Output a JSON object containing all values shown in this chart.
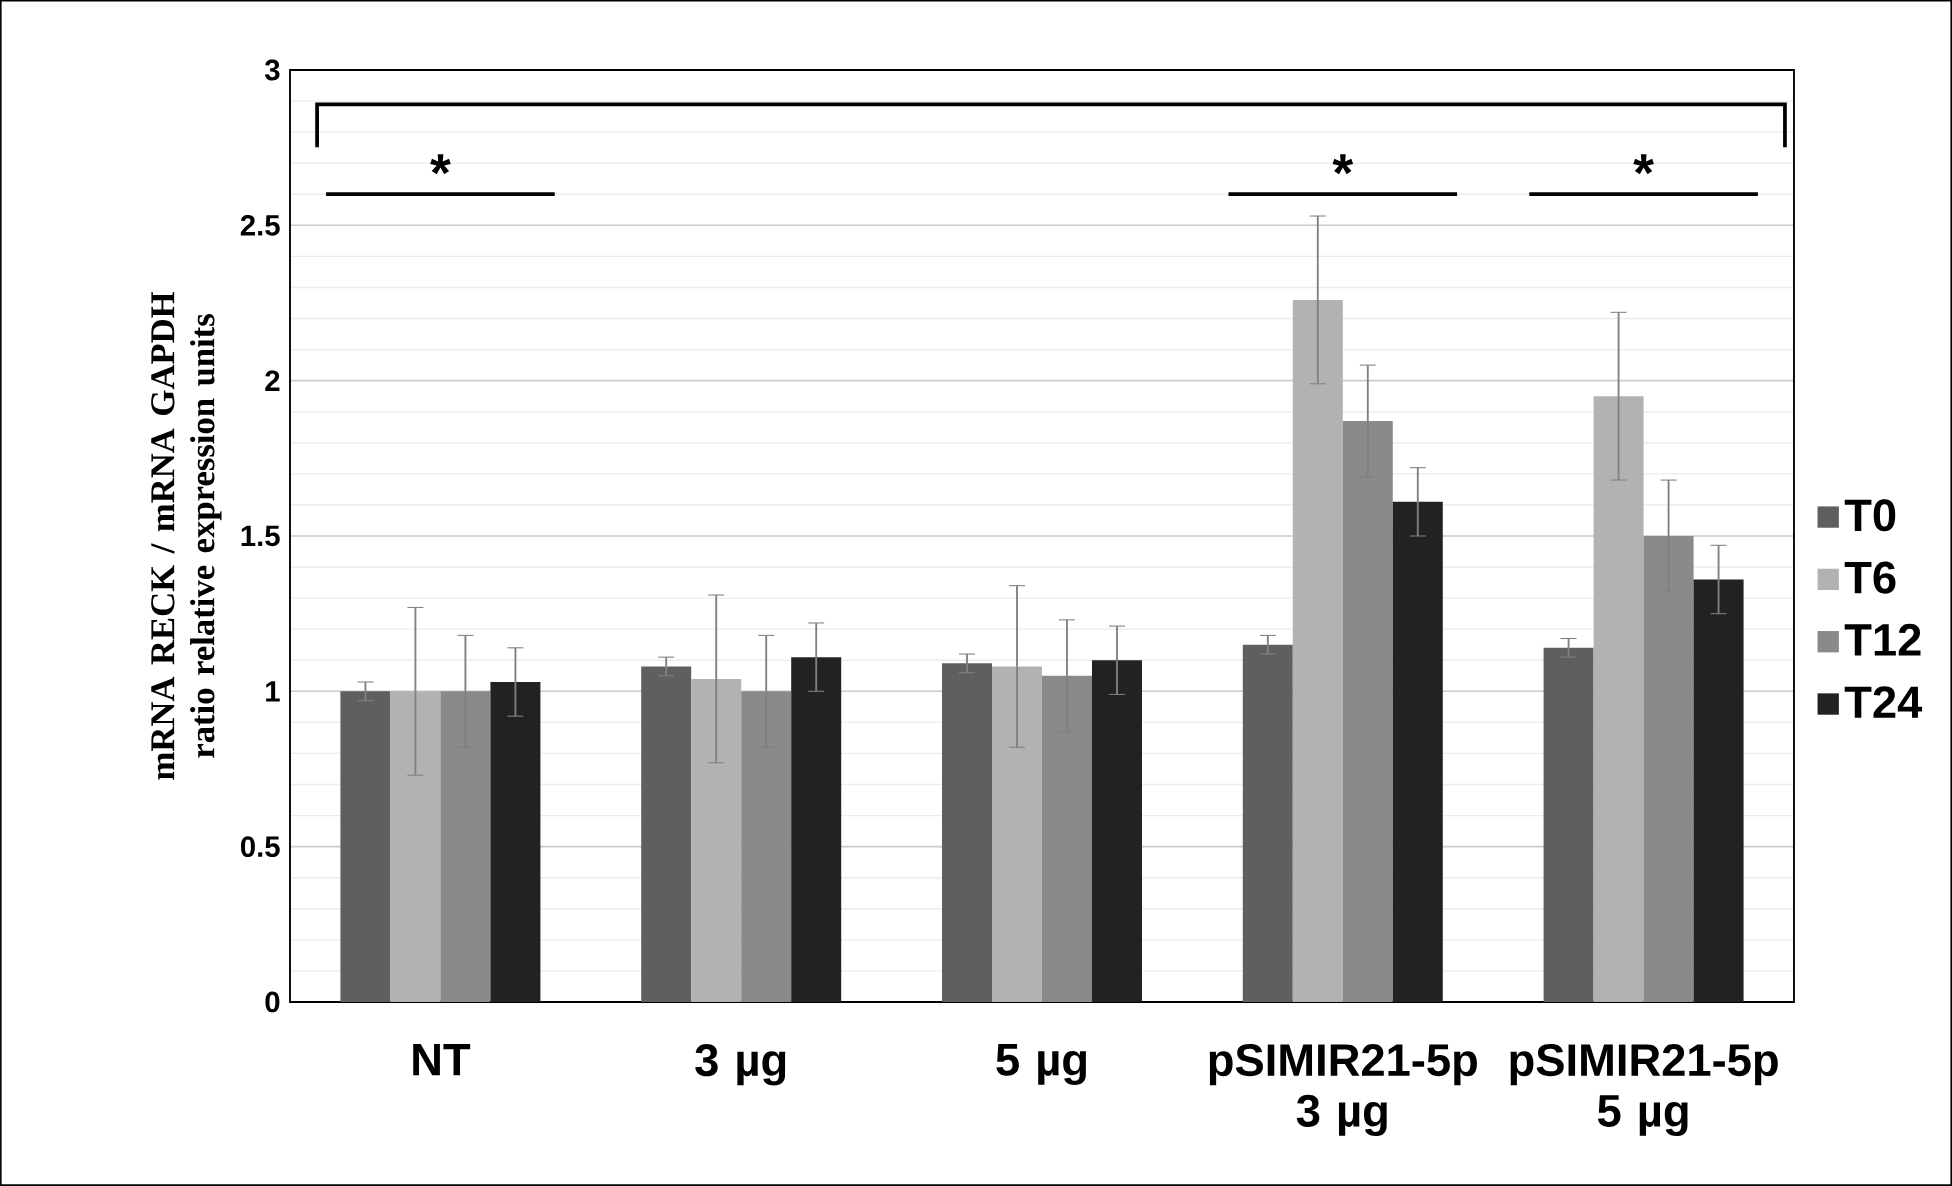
{
  "chart_data": {
    "type": "bar",
    "ylabel": "mRNA RECK / mRNA GAPDH ratio relative expression units",
    "categories": [
      "NT",
      "3 µg",
      "5 µg",
      "pSIMIR21-5p 3 µg",
      "pSIMIR21-5p 5 µg"
    ],
    "series": [
      {
        "name": "T0",
        "color": "#5f5f5f",
        "values": [
          1.0,
          1.08,
          1.09,
          1.15,
          1.14
        ],
        "errors": [
          0.03,
          0.03,
          0.03,
          0.03,
          0.03
        ]
      },
      {
        "name": "T6",
        "color": "#b2b2b2",
        "values": [
          1.0,
          1.04,
          1.08,
          2.26,
          1.95
        ],
        "errors": [
          0.27,
          0.27,
          0.26,
          0.27,
          0.27
        ]
      },
      {
        "name": "T12",
        "color": "#8a8a8a",
        "values": [
          1.0,
          1.0,
          1.05,
          1.87,
          1.5
        ],
        "errors": [
          0.18,
          0.18,
          0.18,
          0.18,
          0.18
        ]
      },
      {
        "name": "T24",
        "color": "#222222",
        "values": [
          1.03,
          1.11,
          1.1,
          1.61,
          1.36
        ],
        "errors": [
          0.11,
          0.11,
          0.11,
          0.11,
          0.11
        ]
      }
    ],
    "ylim": [
      0,
      3
    ],
    "yticks": [
      0,
      0.5,
      1,
      1.5,
      2,
      2.5,
      3
    ],
    "grid": "y",
    "legend": "right",
    "annotations": [
      "*",
      "*",
      "*"
    ]
  }
}
